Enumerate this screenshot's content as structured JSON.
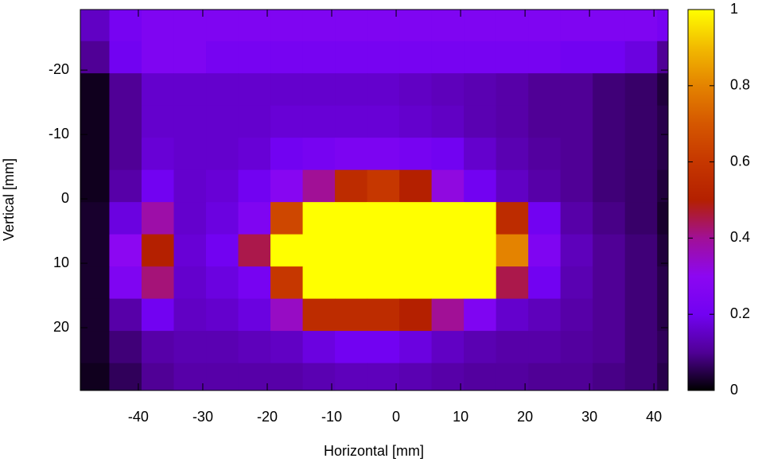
{
  "chart_data": {
    "type": "heatmap",
    "xlabel": "Horizontal [mm]",
    "ylabel": "Vertical [mm]",
    "x": [
      -47,
      -42,
      -37,
      -32,
      -27,
      -22,
      -17,
      -12,
      -7,
      -2,
      3,
      8,
      13,
      18,
      23,
      28,
      33,
      38,
      43
    ],
    "y": [
      -27,
      -22,
      -17,
      -12,
      -7,
      -2,
      3,
      8,
      13,
      18,
      23,
      28
    ],
    "z": [
      [
        0.15,
        0.22,
        0.25,
        0.25,
        0.25,
        0.25,
        0.25,
        0.25,
        0.25,
        0.25,
        0.25,
        0.25,
        0.25,
        0.25,
        0.25,
        0.25,
        0.25,
        0.25,
        0.22
      ],
      [
        0.1,
        0.2,
        0.25,
        0.25,
        0.22,
        0.22,
        0.22,
        0.22,
        0.22,
        0.22,
        0.22,
        0.22,
        0.22,
        0.22,
        0.22,
        0.2,
        0.2,
        0.18,
        0.1
      ],
      [
        0.02,
        0.1,
        0.16,
        0.16,
        0.16,
        0.16,
        0.16,
        0.16,
        0.16,
        0.16,
        0.15,
        0.14,
        0.13,
        0.12,
        0.1,
        0.1,
        0.08,
        0.07,
        0.04
      ],
      [
        0.02,
        0.1,
        0.16,
        0.16,
        0.16,
        0.16,
        0.17,
        0.17,
        0.17,
        0.17,
        0.16,
        0.15,
        0.13,
        0.12,
        0.1,
        0.1,
        0.08,
        0.07,
        0.05
      ],
      [
        0.02,
        0.1,
        0.17,
        0.16,
        0.16,
        0.17,
        0.2,
        0.22,
        0.24,
        0.24,
        0.22,
        0.2,
        0.16,
        0.13,
        0.11,
        0.1,
        0.08,
        0.07,
        0.05
      ],
      [
        0.02,
        0.12,
        0.2,
        0.16,
        0.17,
        0.2,
        0.28,
        0.4,
        0.55,
        0.6,
        0.5,
        0.32,
        0.2,
        0.15,
        0.12,
        0.1,
        0.08,
        0.07,
        0.04
      ],
      [
        0.03,
        0.18,
        0.38,
        0.16,
        0.18,
        0.25,
        0.65,
        1,
        1,
        1,
        1,
        1,
        1,
        0.55,
        0.2,
        0.12,
        0.09,
        0.07,
        0.03
      ],
      [
        0.03,
        0.3,
        0.5,
        0.17,
        0.2,
        0.45,
        1,
        1,
        1,
        1,
        1,
        1,
        1,
        0.8,
        0.25,
        0.14,
        0.1,
        0.08,
        0.04
      ],
      [
        0.03,
        0.25,
        0.42,
        0.16,
        0.18,
        0.22,
        0.6,
        1,
        1,
        1,
        1,
        1,
        1,
        0.45,
        0.2,
        0.13,
        0.1,
        0.08,
        0.05
      ],
      [
        0.03,
        0.12,
        0.2,
        0.15,
        0.16,
        0.18,
        0.35,
        0.55,
        0.55,
        0.55,
        0.5,
        0.4,
        0.25,
        0.16,
        0.14,
        0.12,
        0.1,
        0.08,
        0.05
      ],
      [
        0.03,
        0.08,
        0.12,
        0.13,
        0.13,
        0.14,
        0.15,
        0.18,
        0.2,
        0.2,
        0.18,
        0.15,
        0.13,
        0.12,
        0.12,
        0.11,
        0.1,
        0.08,
        0.06
      ],
      [
        0.02,
        0.06,
        0.1,
        0.12,
        0.12,
        0.12,
        0.12,
        0.13,
        0.14,
        0.14,
        0.13,
        0.12,
        0.11,
        0.11,
        0.1,
        0.1,
        0.09,
        0.08,
        0.05
      ]
    ],
    "xlim": [
      -49,
      42.2
    ],
    "ylim": [
      -29.4,
      29.75
    ],
    "y_inverted": true,
    "xticks": [
      -40,
      -30,
      -20,
      -10,
      0,
      10,
      20,
      30,
      40
    ],
    "yticks": [
      -20,
      -10,
      0,
      10,
      20
    ],
    "zlim": [
      0,
      1
    ],
    "zticks": [
      0,
      0.2,
      0.4,
      0.6,
      0.8,
      1
    ],
    "colormap": [
      "#000000",
      "#500096",
      "#7202f2",
      "#8c07f2",
      "#a11096",
      "#b42000",
      "#c63700",
      "#d55700",
      "#e48300",
      "#f2ba00",
      "#ffff00"
    ]
  }
}
